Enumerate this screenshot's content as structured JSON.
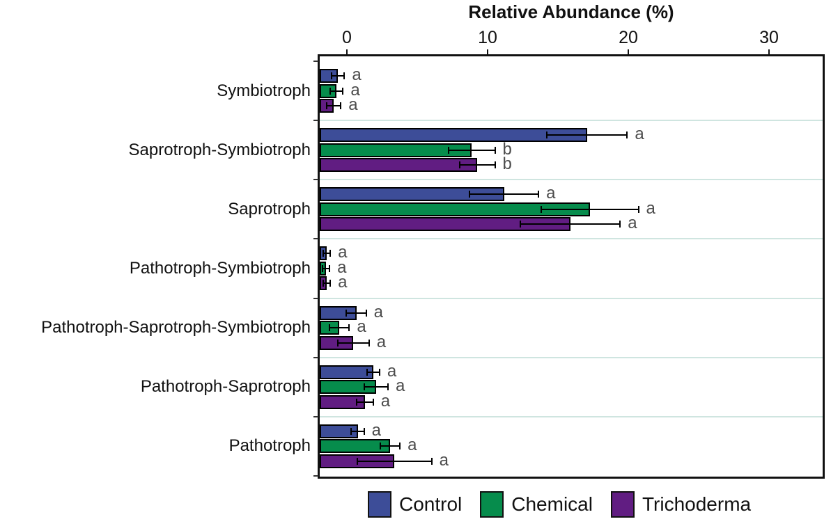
{
  "chart_data": {
    "type": "bar",
    "orientation": "horizontal",
    "title": "Relative Abundance (%)",
    "xlabel": "Relative Abundance (%)",
    "x_ticks": [
      0,
      10,
      20,
      30
    ],
    "xlim": [
      0,
      33
    ],
    "grid": "light category separator lines",
    "legend_position": "bottom",
    "categories": [
      "Symbiotroph",
      "Saprotroph-Symbiotroph",
      "Saprotroph",
      "Pathotroph-Symbiotroph",
      "Pathotroph-Saprotroph-Symbiotroph",
      "Pathotroph-Saprotroph",
      "Pathotroph"
    ],
    "series": [
      {
        "name": "Control",
        "color": "#3d4d98",
        "values": [
          1.3,
          19.0,
          13.1,
          0.5,
          2.6,
          3.8,
          2.7
        ],
        "errors": [
          0.5,
          2.9,
          2.5,
          0.3,
          0.75,
          0.5,
          0.5
        ],
        "sig_letters": [
          "a",
          "a",
          "a",
          "a",
          "a",
          "a",
          "a"
        ]
      },
      {
        "name": "Chemical",
        "color": "#068c4c",
        "values": [
          1.2,
          10.8,
          19.2,
          0.45,
          1.4,
          4.0,
          5.0
        ],
        "errors": [
          0.5,
          1.7,
          3.5,
          0.3,
          0.75,
          0.9,
          0.75
        ],
        "sig_letters": [
          "a",
          "b",
          "a",
          "a",
          "a",
          "a",
          "a"
        ]
      },
      {
        "name": "Trichoderma",
        "color": "#611d82",
        "values": [
          1.0,
          11.2,
          17.8,
          0.5,
          2.4,
          3.2,
          5.3
        ],
        "errors": [
          0.55,
          1.3,
          3.6,
          0.3,
          1.15,
          0.65,
          2.7
        ],
        "sig_letters": [
          "a",
          "b",
          "a",
          "a",
          "a",
          "a",
          "a"
        ]
      }
    ]
  },
  "legend": {
    "items": [
      {
        "label": "Control",
        "color": "#3d4d98"
      },
      {
        "label": "Chemical",
        "color": "#068c4c"
      },
      {
        "label": "Trichoderma",
        "color": "#611d82"
      }
    ]
  },
  "colors": {
    "control": "#3d4d98",
    "chemical": "#068c4c",
    "trichoderma": "#611d82",
    "separator": "#cfe5e0",
    "sig_letter": "#4c4c4c",
    "axis": "#111111"
  }
}
